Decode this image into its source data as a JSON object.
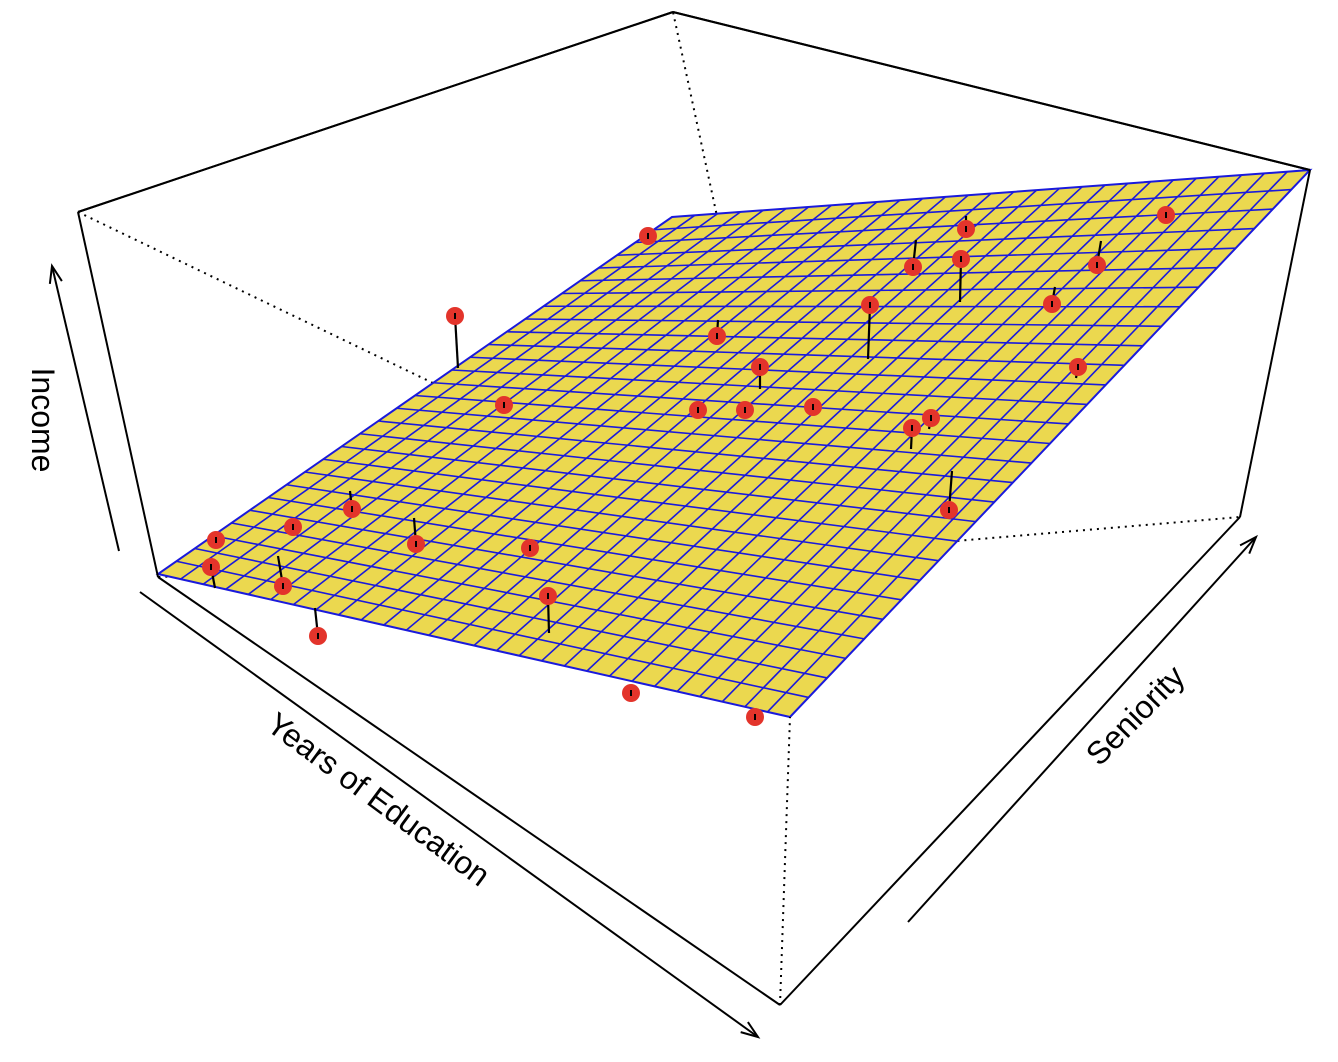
{
  "chart_data": {
    "type": "scatter",
    "subtype": "3d-scatter-with-regression-plane",
    "title": "",
    "xlabel": "Years of Education",
    "ylabel": "Seniority",
    "zlabel": "Income",
    "plane": {
      "grid": true,
      "fill_color": "#ebd84f",
      "grid_color": "#1a1adc",
      "grid_divisions_x": 28,
      "grid_divisions_y": 28
    },
    "points": {
      "color": "#e3342b",
      "residual_line_color": "#000000"
    },
    "colors": {
      "box": "#000000",
      "background": "#ffffff"
    }
  }
}
